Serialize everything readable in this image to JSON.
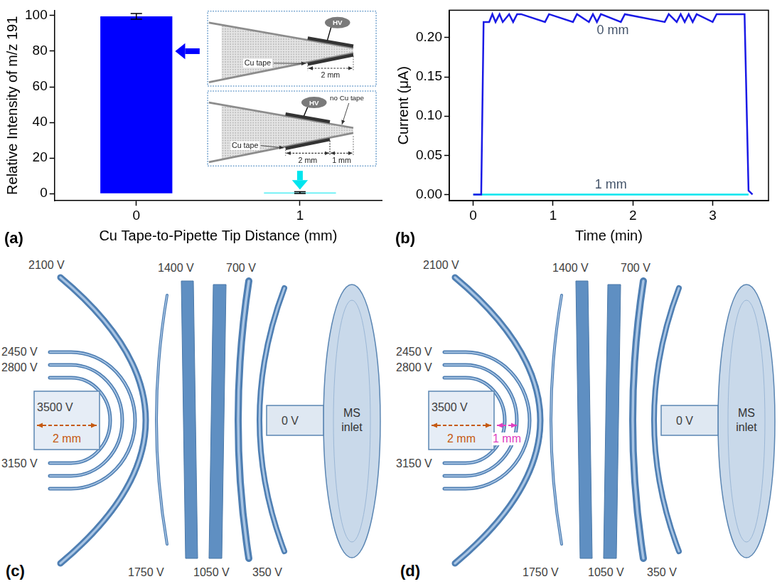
{
  "chart_data": [
    {
      "panel": "(a)",
      "type": "bar",
      "x_label": "Cu Tape-to-Pipette Tip Distance (mm)",
      "y_label": "Relative Intensity of m/z 191",
      "categories": [
        "0",
        "1"
      ],
      "values": [
        99.6,
        0.6
      ],
      "errors": [
        1.6,
        0.5
      ],
      "colors": [
        "#0000ff",
        "#00e5ee"
      ],
      "ylim": [
        -4,
        103
      ],
      "yticks": [
        0,
        20,
        40,
        60,
        80,
        100
      ],
      "grid": false
    },
    {
      "panel": "(b)",
      "type": "line",
      "x_label": "Time (min)",
      "y_label": "Current (μA)",
      "series": [
        {
          "name": "0 mm",
          "color": "#1a1ae6",
          "x": [
            0,
            0.1,
            0.13,
            0.2,
            0.24,
            0.28,
            0.33,
            0.37,
            0.45,
            0.5,
            0.55,
            0.6,
            0.9,
            0.95,
            1.25,
            1.3,
            1.45,
            1.5,
            1.55,
            1.6,
            1.85,
            1.9,
            2.4,
            2.45,
            2.55,
            2.6,
            2.65,
            2.7,
            2.75,
            2.8,
            3.0,
            3.05,
            3.4,
            3.45,
            3.5
          ],
          "values": [
            0,
            0,
            0.22,
            0.22,
            0.23,
            0.22,
            0.23,
            0.22,
            0.23,
            0.22,
            0.23,
            0.23,
            0.22,
            0.23,
            0.22,
            0.23,
            0.22,
            0.23,
            0.22,
            0.23,
            0.22,
            0.23,
            0.22,
            0.23,
            0.22,
            0.23,
            0.22,
            0.23,
            0.22,
            0.23,
            0.22,
            0.23,
            0.23,
            0.005,
            0
          ]
        },
        {
          "name": "1 mm",
          "color": "#00e5ee",
          "x": [
            0,
            3.45
          ],
          "values": [
            0,
            0
          ]
        }
      ],
      "xlim": [
        -0.3,
        3.7
      ],
      "xticks": [
        0,
        1,
        2,
        3
      ],
      "ylim": [
        -0.008,
        0.235
      ],
      "yticks": [
        {
          "value": 0,
          "label": "0.00"
        },
        {
          "value": 0.05,
          "label": "0.05"
        },
        {
          "value": 0.1,
          "label": "0.10"
        },
        {
          "value": 0.15,
          "label": "0.15"
        },
        {
          "value": 0.2,
          "label": "0.20"
        }
      ],
      "grid": false
    }
  ],
  "insets": [
    {
      "hv": "HV",
      "tape": "Cu tape",
      "tape_length": "2 mm"
    },
    {
      "hv": "HV",
      "tape": "Cu tape",
      "tape_length": "2 mm",
      "gap_length": "1 mm",
      "gap": "no Cu tape"
    }
  ],
  "simulations": [
    {
      "panel": "(c)",
      "potentials": [
        "3500 V",
        "3150 V",
        "2800 V",
        "2450 V",
        "2100 V",
        "1750 V",
        "1400 V",
        "1050 V",
        "700 V",
        "350 V",
        "0 V"
      ],
      "inlet": "MS inlet",
      "distances": [
        "2 mm"
      ]
    },
    {
      "panel": "(d)",
      "potentials": [
        "3500 V",
        "3150 V",
        "2800 V",
        "2450 V",
        "2100 V",
        "1750 V",
        "1400 V",
        "1050 V",
        "700 V",
        "350 V",
        "0 V"
      ],
      "inlet": "MS inlet",
      "distances": [
        "2 mm",
        "1 mm"
      ]
    }
  ]
}
